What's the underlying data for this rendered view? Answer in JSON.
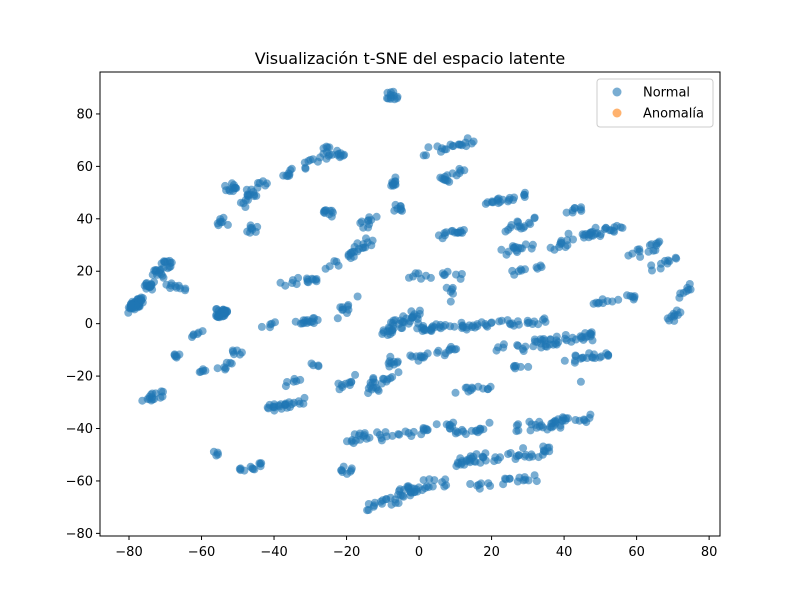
{
  "chart_data": {
    "type": "scatter",
    "title": "Visualización t-SNE del espacio latente",
    "xlabel": "",
    "ylabel": "",
    "xlim": [
      -88,
      83
    ],
    "ylim": [
      -81,
      96
    ],
    "xticks": [
      -80,
      -60,
      -40,
      -20,
      0,
      20,
      40,
      60,
      80
    ],
    "yticks": [
      -80,
      -60,
      -40,
      -20,
      0,
      20,
      40,
      60,
      80
    ],
    "xtick_labels": [
      "−80",
      "−60",
      "−40",
      "−20",
      "0",
      "20",
      "40",
      "60",
      "80"
    ],
    "ytick_labels": [
      "−80",
      "−60",
      "−40",
      "−20",
      "0",
      "20",
      "40",
      "60",
      "80"
    ],
    "grid": false,
    "legend_position": "top-right",
    "series": [
      {
        "name": "Normal",
        "color": "#1f77b4",
        "clusters": [
          {
            "x": [
              -80,
              -76
            ],
            "y": [
              4,
              11
            ],
            "n": 45
          },
          {
            "x": -74.5,
            "y": 14.5,
            "n": 15
          },
          {
            "x": -72,
            "y": 19,
            "n": 12
          },
          {
            "x": -69.5,
            "y": 22.5,
            "n": 12
          },
          {
            "x": -54.5,
            "y": 4,
            "n": 35
          },
          {
            "x": -52,
            "y": 52,
            "n": 12
          },
          {
            "x": -46,
            "y": 50,
            "n": 10
          },
          {
            "x": -43,
            "y": 53,
            "n": 6
          },
          {
            "x": -54,
            "y": 39,
            "n": 8
          },
          {
            "x": -46,
            "y": 36,
            "n": 8
          },
          {
            "x": -48,
            "y": 46,
            "n": 5
          },
          {
            "x": [
              -33,
              -25
            ],
            "y": [
              59,
              65
            ],
            "n": 10
          },
          {
            "x": [
              -38,
              -35
            ],
            "y": [
              55,
              59
            ],
            "n": 8
          },
          {
            "x": -25,
            "y": 66,
            "n": 8
          },
          {
            "x": -22,
            "y": 65,
            "n": 8
          },
          {
            "x": -25,
            "y": 42,
            "n": 10
          },
          {
            "x": [
              -38,
              -28
            ],
            "y": [
              14,
              18
            ],
            "n": 15
          },
          {
            "x": [
              -35,
              -28
            ],
            "y": [
              -1,
              2
            ],
            "n": 15
          },
          {
            "x": [
              -43,
              -40
            ],
            "y": [
              -2,
              1
            ],
            "n": 5
          },
          {
            "x": [
              -63,
              -60
            ],
            "y": [
              -5,
              -3
            ],
            "n": 6
          },
          {
            "x": [
              -68,
              -66
            ],
            "y": [
              -13,
              -11
            ],
            "n": 6
          },
          {
            "x": [
              -60,
              -50
            ],
            "y": [
              -19,
              -14
            ],
            "n": 12
          },
          {
            "x": -50,
            "y": -11,
            "n": 6
          },
          {
            "x": [
              -76,
              -70
            ],
            "y": [
              -31,
              -25
            ],
            "n": 15
          },
          {
            "x": [
              -43,
              -32
            ],
            "y": [
              -33,
              -29
            ],
            "n": 25
          },
          {
            "x": [
              -37,
              -33
            ],
            "y": [
              -24,
              -20
            ],
            "n": 6
          },
          {
            "x": -56,
            "y": -50,
            "n": 4
          },
          {
            "x": [
              -50,
              -43
            ],
            "y": [
              -58,
              -52
            ],
            "n": 12
          },
          {
            "x": [
              -22,
              -17
            ],
            "y": [
              -25,
              -20
            ],
            "n": 10
          },
          {
            "x": -29,
            "y": -16,
            "n": 4
          },
          {
            "x": [
              -20,
              -15
            ],
            "y": [
              -48,
              -40
            ],
            "n": 12
          },
          {
            "x": -20,
            "y": -56,
            "n": 8
          },
          {
            "x": [
              -22,
              -17
            ],
            "y": [
              2,
              12
            ],
            "n": 10
          },
          {
            "x": [
              -27,
              -22
            ],
            "y": [
              20,
              24
            ],
            "n": 5
          },
          {
            "x": [
              -19,
              -13
            ],
            "y": [
              25,
              33
            ],
            "n": 20
          },
          {
            "x": [
              -16,
              -12
            ],
            "y": [
              35,
              42
            ],
            "n": 10
          },
          {
            "x": -7.5,
            "y": 87,
            "n": 12
          },
          {
            "x": [
              -9,
              -6
            ],
            "y": [
              49,
              56
            ],
            "n": 10
          },
          {
            "x": -6,
            "y": 44,
            "n": 8
          },
          {
            "x": [
              2,
              15
            ],
            "y": [
              64,
              71
            ],
            "n": 20
          },
          {
            "x": [
              6,
              12
            ],
            "y": [
              53,
              60
            ],
            "n": 15
          },
          {
            "x": [
              5,
              13
            ],
            "y": [
              32,
              37
            ],
            "n": 15
          },
          {
            "x": [
              -4,
              10
            ],
            "y": [
              17,
              20
            ],
            "n": 12
          },
          {
            "x": [
              8,
              12
            ],
            "y": [
              8,
              20
            ],
            "n": 8
          },
          {
            "x": [
              -10,
              0
            ],
            "y": [
              -6,
              6
            ],
            "n": 40
          },
          {
            "x": [
              0,
              35
            ],
            "y": [
              -3,
              2
            ],
            "n": 60
          },
          {
            "x": [
              -14,
              -6
            ],
            "y": [
              -30,
              -10
            ],
            "n": 30
          },
          {
            "x": [
              -3,
              12
            ],
            "y": [
              -14,
              -9
            ],
            "n": 20
          },
          {
            "x": [
              8,
              20
            ],
            "y": [
              -26,
              -24
            ],
            "n": 12
          },
          {
            "x": [
              20,
              48
            ],
            "y": [
              -12,
              -3
            ],
            "n": 50
          },
          {
            "x": [
              25,
              30
            ],
            "y": [
              -18,
              -15
            ],
            "n": 6
          },
          {
            "x": [
              40,
              52
            ],
            "y": [
              -15,
              -11
            ],
            "n": 20
          },
          {
            "x": [
              -15,
              10
            ],
            "y": [
              -45,
              -38
            ],
            "n": 30
          },
          {
            "x": [
              8,
              20
            ],
            "y": [
              -44,
              -38
            ],
            "n": 15
          },
          {
            "x": [
              25,
              48
            ],
            "y": [
              -42,
              -34
            ],
            "n": 40
          },
          {
            "x": [
              10,
              37
            ],
            "y": [
              -55,
              -46
            ],
            "n": 50
          },
          {
            "x": [
              -8,
              8
            ],
            "y": [
              -67,
              -58
            ],
            "n": 30
          },
          {
            "x": [
              -15,
              -2
            ],
            "y": [
              -72,
              -63
            ],
            "n": 20
          },
          {
            "x": [
              14,
              32
            ],
            "y": [
              -63,
              -58
            ],
            "n": 20
          },
          {
            "x": [
              18,
              30
            ],
            "y": [
              45,
              50
            ],
            "n": 20
          },
          {
            "x": [
              22,
              32
            ],
            "y": [
              34,
              41
            ],
            "n": 15
          },
          {
            "x": [
              22,
              32
            ],
            "y": [
              26,
              31
            ],
            "n": 15
          },
          {
            "x": [
              26,
              34
            ],
            "y": [
              19,
              23
            ],
            "n": 10
          },
          {
            "x": [
              36,
              46
            ],
            "y": [
              27,
              36
            ],
            "n": 15
          },
          {
            "x": [
              40,
              46
            ],
            "y": [
              42,
              45
            ],
            "n": 8
          },
          {
            "x": [
              46,
              58
            ],
            "y": [
              33,
              39
            ],
            "n": 25
          },
          {
            "x": [
              58,
              66
            ],
            "y": [
              25,
              31
            ],
            "n": 15
          },
          {
            "x": [
              64,
              71
            ],
            "y": [
              20,
              26
            ],
            "n": 10
          },
          {
            "x": [
              48,
              60
            ],
            "y": [
              7,
              11
            ],
            "n": 15
          },
          {
            "x": [
              69,
              72
            ],
            "y": [
              1,
              5
            ],
            "n": 10
          },
          {
            "x": [
              72,
              75
            ],
            "y": [
              10,
              15
            ],
            "n": 8
          },
          {
            "x": 46,
            "y": -21,
            "n": 1
          },
          {
            "x": [
              -64,
              -70
            ],
            "y": [
              12,
              16
            ],
            "n": 10
          }
        ]
      },
      {
        "name": "Anomalía",
        "color": "#ff7f0e",
        "clusters": []
      }
    ]
  }
}
